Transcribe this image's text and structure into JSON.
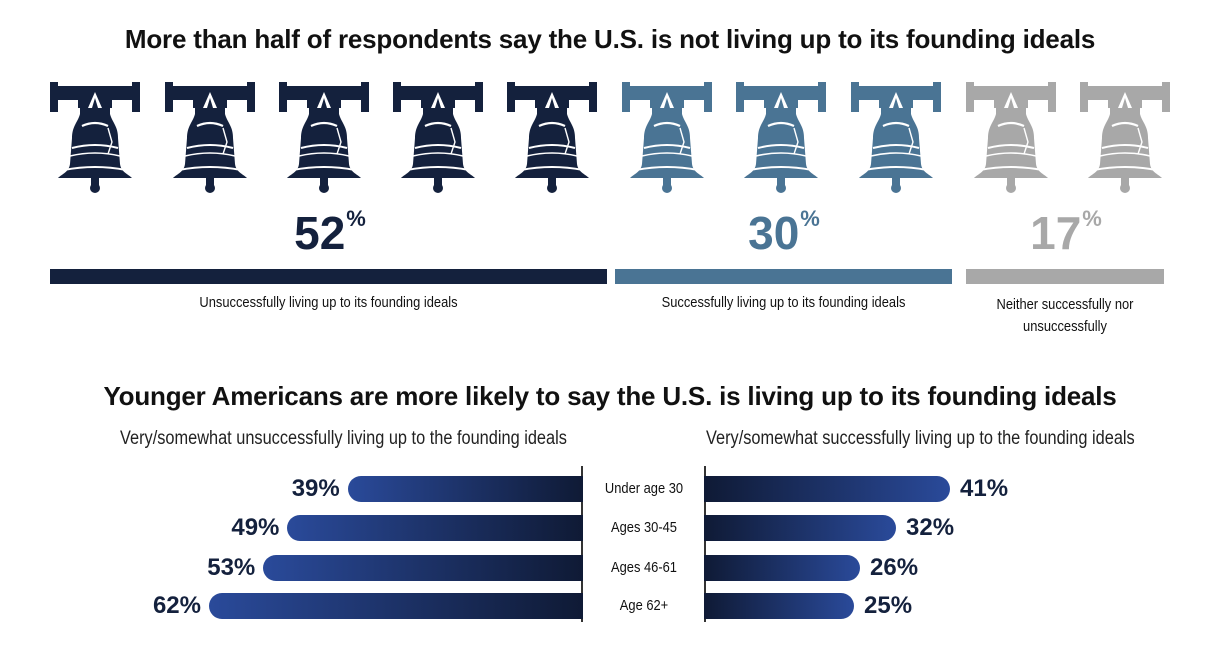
{
  "title_top": "More than half of respondents say the U.S. is not living up to its founding ideals",
  "title_bottom": "Younger Americans are more likely to say the U.S. is living up to its founding ideals",
  "icon": "liberty-bell-icon",
  "colors": {
    "unsuccessful": "#14213d",
    "successful": "#4a7494",
    "neither": "#a8a8a8",
    "bar_dark": "#0f1a35",
    "bar_mid": "#2a4a9a"
  },
  "chart_data": [
    {
      "type": "bar",
      "title": "More than half of respondents say the U.S. is not living up to its founding ideals",
      "categories": [
        "Unsuccessfully living up to its founding ideals",
        "Successfully living up to its founding ideals",
        "Neither successfully nor unsuccessfully"
      ],
      "values": [
        52,
        30,
        17
      ],
      "value_labels": [
        "52",
        "30",
        "17"
      ],
      "unit": "%",
      "bell_counts": [
        5,
        3,
        2
      ],
      "label_lines": [
        [
          "Unsuccessfully living up to its founding ideals"
        ],
        [
          "Successfully living up to its founding ideals"
        ],
        [
          "Neither successfully nor",
          "unsuccessfully"
        ]
      ]
    },
    {
      "type": "bar",
      "title": "Younger Americans are more likely to say the U.S. is living up to its founding ideals",
      "categories": [
        "Under age 30",
        "Ages 30-45",
        "Ages 46-61",
        "Age 62+"
      ],
      "series": [
        {
          "name": "Very/somewhat unsuccessfully living up to the founding ideals",
          "values": [
            39,
            49,
            53,
            62
          ],
          "labels": [
            "39%",
            "49%",
            "53%",
            "62%"
          ]
        },
        {
          "name": "Very/somewhat successfully living up to the founding ideals",
          "values": [
            41,
            32,
            26,
            25
          ],
          "labels": [
            "41%",
            "32%",
            "26%",
            "25%"
          ]
        }
      ]
    }
  ]
}
